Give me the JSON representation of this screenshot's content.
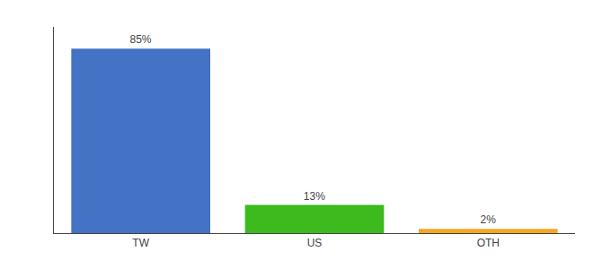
{
  "chart_data": {
    "type": "bar",
    "categories": [
      "TW",
      "US",
      "OTH"
    ],
    "values": [
      85,
      13,
      2
    ],
    "value_labels": [
      "85%",
      "13%",
      "2%"
    ],
    "data_labels": true,
    "colors": [
      "#4472c4",
      "#3dba1e",
      "#f5a623"
    ],
    "ylim": [
      0,
      95
    ],
    "tick_labels": "x",
    "grid": false
  }
}
